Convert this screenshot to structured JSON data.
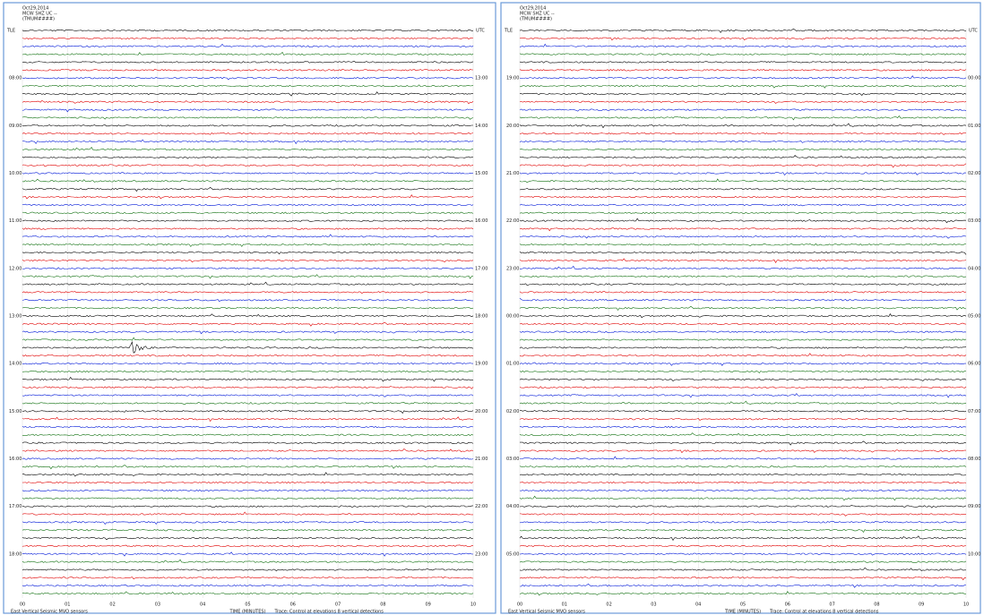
{
  "panels": [
    {
      "header": [
        "Oct29,2014",
        "MCW SHZ UC --",
        "(TMUM####)"
      ],
      "left_zone": "TLE",
      "right_zone": "UTC",
      "left_hours": [
        "08:00",
        "09:00",
        "10:00",
        "11:00",
        "12:00",
        "13:00",
        "14:00",
        "15:00",
        "16:00",
        "17:00",
        "18:00"
      ],
      "right_hours": [
        "13:00",
        "14:00",
        "15:00",
        "16:00",
        "17:00",
        "18:00",
        "19:00",
        "20:00",
        "21:00",
        "22:00",
        "23:00"
      ],
      "minutes": [
        "00",
        "01",
        "02",
        "03",
        "04",
        "05",
        "06",
        "07",
        "08",
        "09",
        "10"
      ],
      "xlabel": "TIME (MINUTES)",
      "footer_left": "East Vertical Seismic  MVO sensors",
      "footer_right": "Trace: Control at elevations 8 vertical detections"
    },
    {
      "header": [
        "Oct29,2014",
        "MCW SHZ UC --",
        "(TMUM####)"
      ],
      "left_zone": "TLE",
      "right_zone": "UTC",
      "left_hours": [
        "19:00",
        "20:00",
        "21:00",
        "22:00",
        "23:00",
        "00:00",
        "01:00",
        "02:00",
        "03:00",
        "04:00",
        "05:00"
      ],
      "right_hours": [
        "00:00",
        "01:00",
        "02:00",
        "03:00",
        "04:00",
        "05:00",
        "06:00",
        "07:00",
        "08:00",
        "09:00",
        "10:00"
      ],
      "minutes": [
        "00",
        "01",
        "02",
        "03",
        "04",
        "05",
        "06",
        "07",
        "08",
        "09",
        "10"
      ],
      "xlabel": "TIME (MINUTES)",
      "footer_left": "East Vertical Seismic  MVO sensors",
      "footer_right": "Trace: Control at elevations 8 vertical detections"
    }
  ]
}
